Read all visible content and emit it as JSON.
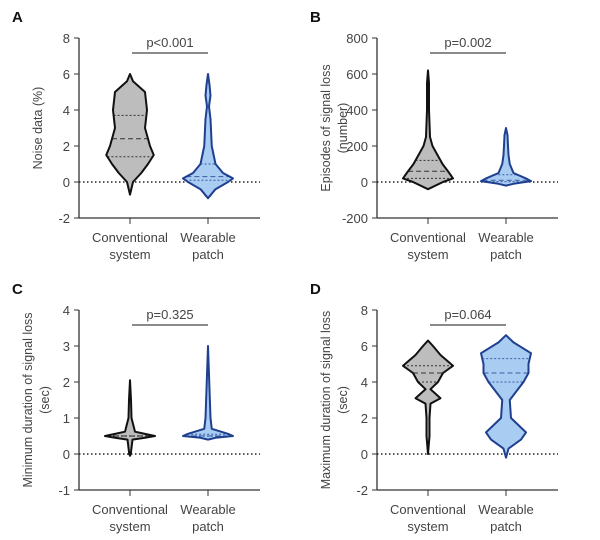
{
  "chart_data": [
    {
      "panel": "A",
      "type": "violin",
      "ylabel": [
        "Noise data (%)"
      ],
      "ylim": [
        -2,
        8
      ],
      "yticks": [
        -2,
        0,
        2,
        4,
        6,
        8
      ],
      "categories": [
        [
          "Conventional",
          "system"
        ],
        [
          "Wearable",
          "patch"
        ]
      ],
      "pvalue": "p<0.001",
      "series": [
        {
          "color": "#bdbdbd",
          "stroke": "#111111",
          "median": 2.4,
          "q1": 1.4,
          "q3": 3.7,
          "profile": [
            [
              6,
              0
            ],
            [
              5.6,
              0.12
            ],
            [
              5,
              0.6
            ],
            [
              4,
              0.68
            ],
            [
              3,
              0.6
            ],
            [
              2,
              0.8
            ],
            [
              1.5,
              0.95
            ],
            [
              1,
              0.72
            ],
            [
              0.5,
              0.45
            ],
            [
              0,
              0.12
            ],
            [
              -0.7,
              0
            ]
          ]
        },
        {
          "color": "#a9cdf2",
          "stroke": "#1f3f8f",
          "median": 0.3,
          "q1": 0.1,
          "q3": 1.0,
          "profile": [
            [
              6,
              0
            ],
            [
              5.4,
              0.06
            ],
            [
              4.8,
              0.1
            ],
            [
              4.2,
              0.04
            ],
            [
              3.5,
              0.1
            ],
            [
              2,
              0.15
            ],
            [
              1,
              0.3
            ],
            [
              0.5,
              0.6
            ],
            [
              0.2,
              1.0
            ],
            [
              0,
              0.8
            ],
            [
              -0.4,
              0.3
            ],
            [
              -0.9,
              0
            ]
          ]
        }
      ]
    },
    {
      "panel": "B",
      "type": "violin",
      "ylabel": [
        "Episodes of signal loss",
        "(number)"
      ],
      "ylim": [
        -200,
        800
      ],
      "yticks": [
        -200,
        0,
        200,
        400,
        600,
        800
      ],
      "categories": [
        [
          "Conventional",
          "system"
        ],
        [
          "Wearable",
          "patch"
        ]
      ],
      "pvalue": "p=0.002",
      "series": [
        {
          "color": "#bdbdbd",
          "stroke": "#111111",
          "median": 60,
          "q1": 20,
          "q3": 120,
          "profile": [
            [
              620,
              0
            ],
            [
              550,
              0.04
            ],
            [
              400,
              0.04
            ],
            [
              250,
              0.08
            ],
            [
              200,
              0.18
            ],
            [
              150,
              0.38
            ],
            [
              100,
              0.58
            ],
            [
              50,
              0.85
            ],
            [
              20,
              1.0
            ],
            [
              0,
              0.6
            ],
            [
              -40,
              0
            ]
          ]
        },
        {
          "color": "#a9cdf2",
          "stroke": "#1f3f8f",
          "median": 10,
          "q1": 2,
          "q3": 40,
          "profile": [
            [
              300,
              0
            ],
            [
              260,
              0.06
            ],
            [
              200,
              0.08
            ],
            [
              150,
              0.1
            ],
            [
              100,
              0.15
            ],
            [
              50,
              0.3
            ],
            [
              20,
              0.8
            ],
            [
              5,
              1.0
            ],
            [
              -10,
              0.3
            ],
            [
              -20,
              0
            ]
          ]
        }
      ]
    },
    {
      "panel": "C",
      "type": "violin",
      "ylabel": [
        "Minimum duration of signal loss",
        "(sec)"
      ],
      "ylim": [
        -1,
        4
      ],
      "yticks": [
        -1,
        0,
        1,
        2,
        3,
        4
      ],
      "categories": [
        [
          "Conventional",
          "system"
        ],
        [
          "Wearable",
          "patch"
        ]
      ],
      "pvalue": "p=0.325",
      "series": [
        {
          "color": "#bdbdbd",
          "stroke": "#111111",
          "median": 0.5,
          "q1": 0.5,
          "q3": 0.5,
          "profile": [
            [
              2.05,
              0
            ],
            [
              1.5,
              0.04
            ],
            [
              1,
              0.06
            ],
            [
              0.62,
              0.2
            ],
            [
              0.56,
              0.6
            ],
            [
              0.5,
              1.0
            ],
            [
              0.45,
              0.6
            ],
            [
              0.4,
              0.1
            ],
            [
              0,
              0.03
            ],
            [
              -0.05,
              0
            ]
          ]
        },
        {
          "color": "#a9cdf2",
          "stroke": "#1f3f8f",
          "median": 0.5,
          "q1": 0.5,
          "q3": 0.55,
          "profile": [
            [
              3,
              0
            ],
            [
              2,
              0.05
            ],
            [
              1,
              0.1
            ],
            [
              0.7,
              0.15
            ],
            [
              0.56,
              0.8
            ],
            [
              0.5,
              1.0
            ],
            [
              0.45,
              0.3
            ],
            [
              0.4,
              0
            ]
          ]
        }
      ]
    },
    {
      "panel": "D",
      "type": "violin",
      "ylabel": [
        "Maximum duration of signal loss",
        "(sec)"
      ],
      "ylim": [
        -2,
        8
      ],
      "yticks": [
        -2,
        0,
        2,
        4,
        6,
        8
      ],
      "categories": [
        [
          "Conventional",
          "system"
        ],
        [
          "Wearable",
          "patch"
        ]
      ],
      "pvalue": "p=0.064",
      "series": [
        {
          "color": "#bdbdbd",
          "stroke": "#111111",
          "median": 4.5,
          "q1": 4.0,
          "q3": 4.9,
          "profile": [
            [
              6.3,
              0
            ],
            [
              6,
              0.2
            ],
            [
              5.5,
              0.5
            ],
            [
              4.9,
              1.0
            ],
            [
              4.5,
              0.6
            ],
            [
              4,
              0.4
            ],
            [
              3.6,
              0.1
            ],
            [
              3.1,
              0.5
            ],
            [
              2.8,
              0.1
            ],
            [
              2,
              0.06
            ],
            [
              1,
              0.06
            ],
            [
              0,
              0
            ]
          ]
        },
        {
          "color": "#a9cdf2",
          "stroke": "#1f3f8f",
          "median": 4.5,
          "q1": 4.0,
          "q3": 5.3,
          "profile": [
            [
              6.6,
              0
            ],
            [
              6.2,
              0.3
            ],
            [
              5.6,
              1.0
            ],
            [
              5,
              0.9
            ],
            [
              4.5,
              0.9
            ],
            [
              4,
              0.7
            ],
            [
              3,
              0.15
            ],
            [
              2,
              0.2
            ],
            [
              1.2,
              0.8
            ],
            [
              0.8,
              0.6
            ],
            [
              0.3,
              0.1
            ],
            [
              -0.2,
              0
            ]
          ]
        }
      ]
    }
  ]
}
